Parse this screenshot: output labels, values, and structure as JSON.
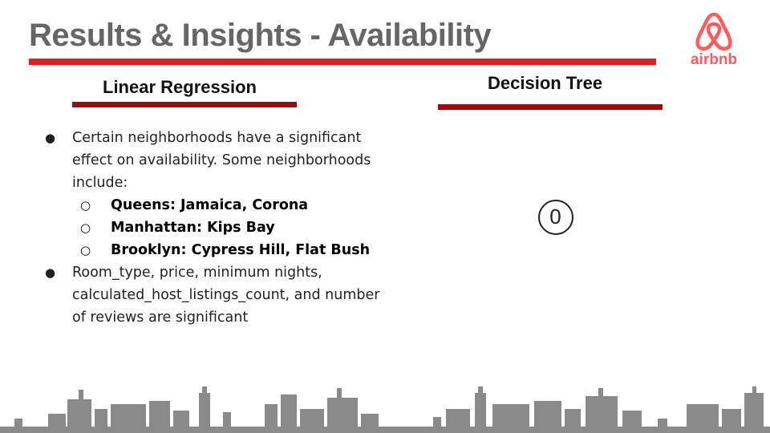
{
  "slide": {
    "title": "Results & Insights - Availability",
    "logo_text": "airbnb",
    "accent_color": "#e01e1e",
    "dark_rule_color": "#9b0d0d"
  },
  "left_column": {
    "heading": "Linear Regression",
    "bullets": [
      {
        "text": "Certain neighborhoods have a significant effect on availability. Some neighborhoods include:",
        "sub": [
          "Queens: Jamaica, Corona",
          "Manhattan: Kips Bay",
          "Brooklyn: Cypress Hill, Flat Bush"
        ]
      },
      {
        "text": "Room_type, price, minimum nights, calculated_host_listings_count, and number of reviews are significant"
      }
    ],
    "bullet_symbol": "●",
    "sub_bullet_symbol": "○"
  },
  "right_column": {
    "heading": "Decision Tree",
    "value": "0"
  }
}
